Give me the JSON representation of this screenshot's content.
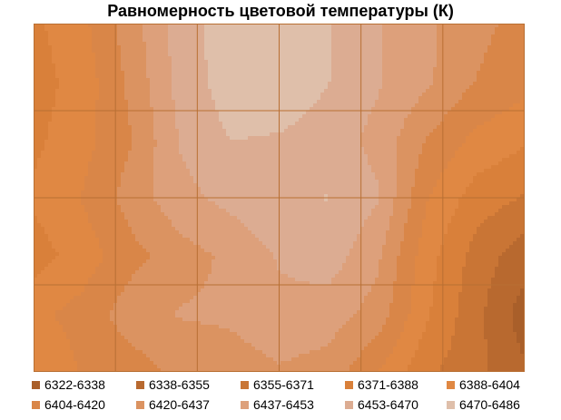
{
  "chart_data": {
    "type": "heatmap",
    "title": "Равномерность цветовой температуры (К)",
    "grid": true,
    "legend_position": "bottom",
    "legend": [
      {
        "label": "6322-6338",
        "color": "#a95f2a"
      },
      {
        "label": "6338-6355",
        "color": "#b8692f"
      },
      {
        "label": "6355-6371",
        "color": "#c97535"
      },
      {
        "label": "6371-6388",
        "color": "#d9803a"
      },
      {
        "label": "6388-6404",
        "color": "#e08843"
      },
      {
        "label": "6404-6420",
        "color": "#d98648"
      },
      {
        "label": "6420-6437",
        "color": "#db9361"
      },
      {
        "label": "6437-6453",
        "color": "#dda07b"
      },
      {
        "label": "6453-6470",
        "color": "#dcac92"
      },
      {
        "label": "6470-6486",
        "color": "#dfbfaa"
      }
    ],
    "values": [
      [
        6384,
        6400,
        6430,
        6462,
        6478,
        6480,
        6470,
        6455,
        6440,
        6425,
        6415
      ],
      [
        6380,
        6395,
        6425,
        6460,
        6478,
        6482,
        6470,
        6455,
        6440,
        6420,
        6410
      ],
      [
        6384,
        6398,
        6420,
        6455,
        6470,
        6468,
        6462,
        6448,
        6420,
        6400,
        6390
      ],
      [
        6390,
        6405,
        6428,
        6448,
        6458,
        6468,
        6470,
        6455,
        6405,
        6380,
        6370
      ],
      [
        6380,
        6395,
        6415,
        6430,
        6440,
        6455,
        6462,
        6440,
        6395,
        6365,
        6345
      ],
      [
        6400,
        6410,
        6430,
        6438,
        6440,
        6448,
        6445,
        6430,
        6390,
        6360,
        6330
      ],
      [
        6390,
        6405,
        6412,
        6425,
        6428,
        6435,
        6430,
        6405,
        6375,
        6360,
        6340
      ]
    ]
  }
}
